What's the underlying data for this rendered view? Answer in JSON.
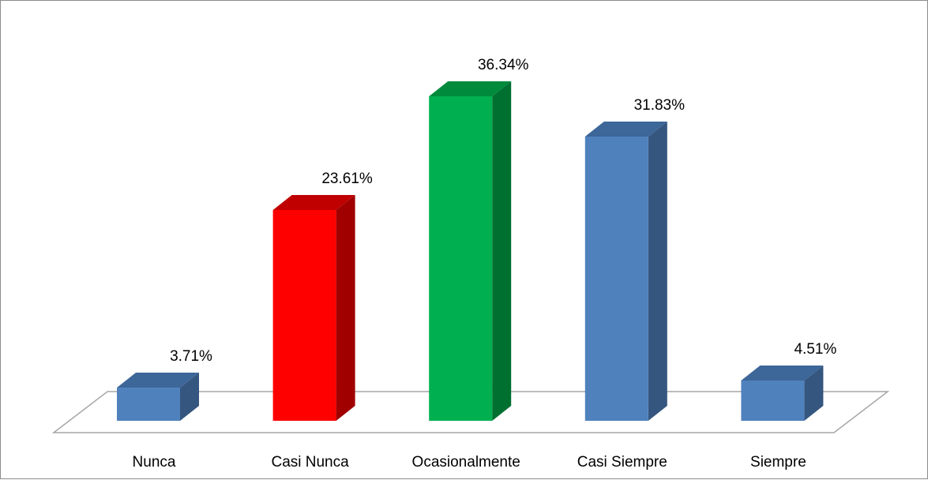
{
  "chart_data": {
    "type": "bar",
    "title": "",
    "xlabel": "",
    "ylabel": "",
    "ylim": [
      0,
      40
    ],
    "grid": false,
    "legend": "none",
    "three_d": true,
    "categories": [
      "Nunca",
      "Casi Nunca",
      "Ocasionalmente",
      "Casi Siempre",
      "Siempre"
    ],
    "values": [
      3.71,
      23.61,
      36.34,
      31.83,
      4.51
    ],
    "value_labels": [
      "3.71%",
      "23.61%",
      "36.34%",
      "31.83%",
      "4.51%"
    ],
    "colors": [
      "#4f81bd",
      "#ff0000",
      "#00b050",
      "#4f81bd",
      "#4f81bd"
    ],
    "side_colors": [
      "#35567f",
      "#a00000",
      "#007030",
      "#35567f",
      "#35567f"
    ],
    "top_colors": [
      "#3d6699",
      "#c00000",
      "#008a3c",
      "#3d6699",
      "#3d6699"
    ]
  }
}
